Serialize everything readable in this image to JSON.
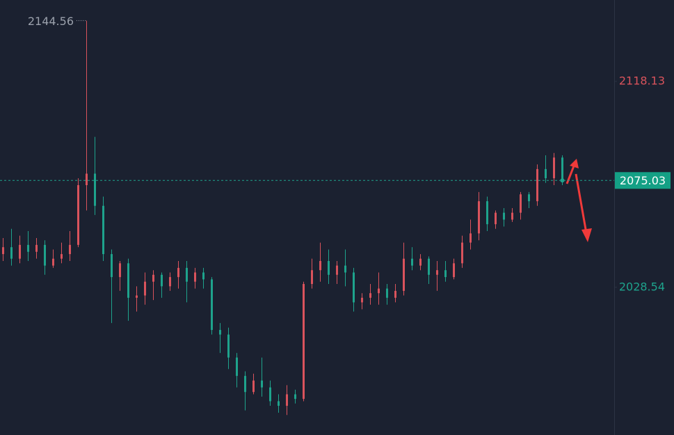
{
  "chart_data": {
    "type": "candlestick",
    "up_color": "#d9535c",
    "down_color": "#1ea38c",
    "ylim": [
      1964.3,
      2153.54
    ],
    "yticks": [
      2118.13,
      2028.54
    ],
    "ytick_colors": [
      "#d9535c",
      "#1ea38c"
    ],
    "open": [
      2043,
      2046,
      2041,
      2047,
      2044,
      2047,
      2038,
      2041,
      2043,
      2047,
      2073,
      2078,
      2064,
      2043,
      2033,
      2039,
      2024,
      2025,
      2031,
      2034,
      2029,
      2033,
      2037,
      2031,
      2035,
      2032,
      2010,
      2008,
      1998,
      1990,
      1983,
      1988,
      1985,
      1979,
      1977,
      1982,
      1980,
      2030,
      2036,
      2040,
      2034,
      2038,
      2035,
      2022,
      2024,
      2026,
      2028,
      2024,
      2027,
      2041,
      2038,
      2041,
      2034,
      2036,
      2033,
      2039,
      2048,
      2052,
      2066,
      2056,
      2061,
      2058,
      2061,
      2069,
      2066,
      2080,
      2076,
      2085
    ],
    "high": [
      2050,
      2054,
      2051,
      2053,
      2050,
      2049,
      2045,
      2048,
      2053,
      2076,
      2144.56,
      2094,
      2068,
      2045,
      2040,
      2041,
      2029,
      2035,
      2036,
      2035,
      2035,
      2040,
      2040,
      2037,
      2037,
      2033,
      2013,
      2011,
      2000,
      1992,
      1991,
      1998,
      1988,
      1982,
      1986,
      1984,
      2031,
      2041,
      2048,
      2045,
      2040,
      2045,
      2037,
      2026,
      2030,
      2035,
      2030,
      2030,
      2048,
      2046,
      2043,
      2042,
      2040,
      2040,
      2041,
      2051,
      2058,
      2070,
      2068,
      2062,
      2063,
      2063,
      2070,
      2070,
      2082,
      2086,
      2087,
      2086
    ],
    "low": [
      2040,
      2038,
      2039,
      2040,
      2041,
      2034,
      2037,
      2039,
      2040,
      2046,
      2062,
      2060,
      2040,
      2013,
      2027,
      2014,
      2018,
      2021,
      2023,
      2024,
      2027,
      2028,
      2022,
      2028,
      2028,
      2008,
      2000,
      1993,
      1985,
      1975,
      1982,
      1981,
      1977,
      1974,
      1973,
      1978,
      1979,
      2028,
      2031,
      2030,
      2030,
      2029,
      2018,
      2019,
      2021,
      2021,
      2021,
      2022,
      2025,
      2036,
      2036,
      2030,
      2027,
      2031,
      2032,
      2037,
      2045,
      2049,
      2053,
      2054,
      2055,
      2057,
      2058,
      2063,
      2064,
      2074,
      2073,
      2073
    ],
    "close": [
      2046,
      2041,
      2047,
      2044,
      2047,
      2038,
      2041,
      2043,
      2047,
      2073,
      2078,
      2064,
      2043,
      2033,
      2039,
      2024,
      2025,
      2031,
      2034,
      2029,
      2033,
      2037,
      2031,
      2035,
      2032,
      2010,
      2008,
      1998,
      1990,
      1983,
      1988,
      1985,
      1979,
      1977,
      1982,
      1980,
      2030,
      2036,
      2040,
      2034,
      2038,
      2035,
      2022,
      2024,
      2026,
      2028,
      2024,
      2027,
      2041,
      2038,
      2041,
      2034,
      2036,
      2033,
      2039,
      2048,
      2052,
      2066,
      2056,
      2061,
      2058,
      2061,
      2069,
      2066,
      2080,
      2076,
      2085,
      2075.03
    ]
  }
}
